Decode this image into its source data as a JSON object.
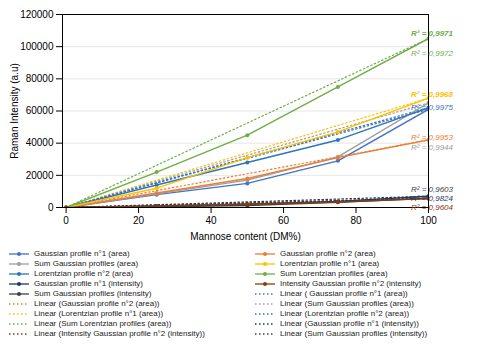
{
  "chart_data": {
    "type": "line",
    "xlabel": "Mannose content (DM%)",
    "ylabel": "Raman Intensity (a.u)",
    "x": [
      0,
      25,
      50,
      75,
      100
    ],
    "xlim": [
      -1,
      100
    ],
    "xticks": [
      0,
      20,
      40,
      60,
      80,
      100
    ],
    "ylim": [
      0,
      120000
    ],
    "yticks": [
      0,
      20000,
      40000,
      60000,
      80000,
      100000,
      120000
    ],
    "grid": "y",
    "legend": "bottom",
    "series": [
      {
        "name": "Gaussian profile n°1 (area)",
        "color": "#4472C4",
        "values": [
          0,
          8000,
          15000,
          29000,
          61000
        ],
        "marker": "circle",
        "line_style": "solid"
      },
      {
        "name": "Sum Gaussian profiles (area)",
        "color": "#9E9E9E",
        "values": [
          0,
          8500,
          17000,
          31500,
          65000
        ],
        "marker": "circle",
        "line_style": "solid"
      },
      {
        "name": "Lorentzian profile n°2 (area)",
        "color": "#2E75B6",
        "values": [
          0,
          14000,
          28000,
          42000,
          62000
        ],
        "marker": "circle",
        "line_style": "solid"
      },
      {
        "name": "Gaussian profile n°1 (intensity)",
        "color": "#1F3864",
        "values": [
          0,
          800,
          2000,
          3800,
          7000
        ],
        "marker": "circle",
        "line_style": "solid"
      },
      {
        "name": "Sum Gaussian profiles (intensity)",
        "color": "#404040",
        "values": [
          0,
          400,
          1200,
          3200,
          5800
        ],
        "marker": "circle",
        "line_style": "solid"
      },
      {
        "name": "Linear (Gaussian profile n°2 (area))",
        "color": "#ED7D31",
        "x": [
          0,
          100
        ],
        "values": [
          0,
          42000
        ],
        "line_style": "dotted"
      },
      {
        "name": "Linear (Lorentzian profile n°1 (area))",
        "color": "#FFC000",
        "x": [
          0,
          100
        ],
        "values": [
          0,
          68000
        ],
        "line_style": "dotted"
      },
      {
        "name": "Linear (Sum Lorentzian profiles (area))",
        "color": "#70AD47",
        "x": [
          0,
          100
        ],
        "values": [
          0,
          105000
        ],
        "line_style": "dotted"
      },
      {
        "name": "Linear (Intensity Gaussian profile n°2 (intensity))",
        "color": "#843C0C",
        "x": [
          0,
          100
        ],
        "values": [
          0,
          5500
        ],
        "line_style": "dotted"
      },
      {
        "name": "Gaussian profile n°2 (area)",
        "color": "#ED7D31",
        "values": [
          0,
          9000,
          18000,
          31000,
          42000
        ],
        "marker": "circle",
        "line_style": "solid"
      },
      {
        "name": "Lorentzian profile n°1 (area)",
        "color": "#FFC000",
        "values": [
          0,
          12000,
          31000,
          47000,
          68000
        ],
        "marker": "circle",
        "line_style": "solid"
      },
      {
        "name": "Sum Lorentzian profiles (area)",
        "color": "#70AD47",
        "values": [
          0,
          22000,
          45000,
          75000,
          105000
        ],
        "marker": "circle",
        "line_style": "solid"
      },
      {
        "name": "Intensity Gaussian profile n°2 (intensity)",
        "color": "#843C0C",
        "values": [
          0,
          1000,
          2000,
          3400,
          5500
        ],
        "marker": "circle",
        "line_style": "solid"
      },
      {
        "name": "Linear ( Gaussian profile n°1 (area))",
        "color": "#4472C4",
        "x": [
          0,
          100
        ],
        "values": [
          0,
          61000
        ],
        "line_style": "dotted"
      },
      {
        "name": "Linear (Sum Gaussian profiles (area))",
        "color": "#9E9E9E",
        "x": [
          0,
          100
        ],
        "values": [
          0,
          65000
        ],
        "line_style": "dotted"
      },
      {
        "name": "Linear (Lorentzian profile n°2 (area))",
        "color": "#2E75B6",
        "x": [
          0,
          100
        ],
        "values": [
          0,
          62000
        ],
        "line_style": "dotted"
      },
      {
        "name": "Linear (Gaussian profile n°1 (intensity))",
        "color": "#1F3864",
        "x": [
          0,
          100
        ],
        "values": [
          0,
          7000
        ],
        "line_style": "dotted"
      },
      {
        "name": "Linear (Sum Gaussian profiles (intensity))",
        "color": "#404040",
        "x": [
          0,
          100
        ],
        "values": [
          0,
          5800
        ],
        "line_style": "dotted"
      }
    ],
    "annotations": [
      {
        "text": "R² = 0,9971",
        "x": 100,
        "y": 108000,
        "color": "#70AD47",
        "bold": true
      },
      {
        "text": "R² = 0,9972",
        "x": 100,
        "y": 95500,
        "color": "#70AD47",
        "bold": false
      },
      {
        "text": "R² = 0,9968",
        "x": 100,
        "y": 70000,
        "color": "#FFC000",
        "bold": true
      },
      {
        "text": "R² = 0,9975",
        "x": 100,
        "y": 62000,
        "color": "#4472C4",
        "bold": false
      },
      {
        "text": "R² = 0,9953",
        "x": 100,
        "y": 43500,
        "color": "#ED7D31",
        "bold": false
      },
      {
        "text": "R² = 0,9944",
        "x": 100,
        "y": 37000,
        "color": "#9E9E9E",
        "bold": false
      },
      {
        "text": "R² = 0,9603",
        "x": 100,
        "y": 11000,
        "color": "#404040",
        "bold": false
      },
      {
        "text": "R² = 0,9824",
        "x": 100,
        "y": 7800,
        "color": "#1F3864",
        "bold": false
      },
      {
        "text": "R² = 0,9604",
        "x": 100,
        "y": 5000,
        "color": "#843C0C",
        "bold": false
      }
    ]
  }
}
